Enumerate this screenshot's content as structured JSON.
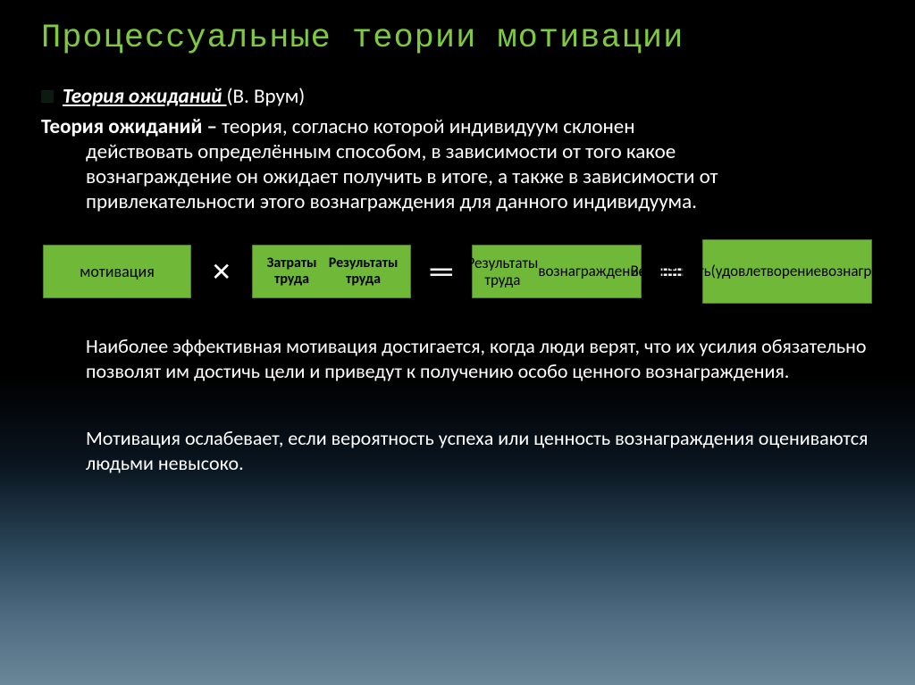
{
  "slide": {
    "title": "Процессуальные теории мотивации",
    "title_color": "#7ec93f",
    "title_fontfamily": "Courier New",
    "title_fontsize": 37
  },
  "subtitle": {
    "main": "Теория ожиданий ",
    "author": "(В. Врум)"
  },
  "definition": {
    "bold_term": "Теория ожиданий – ",
    "rest_first": "теория, согласно которой индивидуум склонен",
    "line2": "действовать определённым способом, в зависимости от того какое",
    "line3": "вознаграждение он ожидает получить в итоге, а также в зависимости от",
    "line4": "привлекательности этого вознаграждения для данного индивидуума."
  },
  "diagram": {
    "background_color": "#70b837",
    "border_color": "#4f7f2e",
    "text_color": "#000000",
    "op_color": "#ffffff",
    "boxes": [
      {
        "lines": [
          "мотивация"
        ],
        "width": 166,
        "height": 60,
        "fontsize": 18,
        "bold": false
      },
      {
        "lines": [
          "Затраты труда",
          "Результаты труда"
        ],
        "width": 178,
        "height": 60,
        "fontsize": 16,
        "bold": true
      },
      {
        "lines": [
          "Результаты труда",
          "вознаграждение"
        ],
        "width": 190,
        "height": 60,
        "fontsize": 17,
        "bold": false
      },
      {
        "lines": [
          "Валентность",
          "(удовлетворение",
          "вознаграждением)"
        ],
        "width": 190,
        "height": 72,
        "fontsize": 17,
        "bold": false
      }
    ],
    "operators": [
      {
        "symbol": "✕",
        "fontsize": 28
      },
      {
        "symbol": "═",
        "fontsize": 34
      },
      {
        "symbol": "═",
        "fontsize": 34
      }
    ]
  },
  "paragraph1": "Наиболее эффективная мотивация достигается, когда люди верят, что их усилия обязательно позволят им достичь цели и приведут к получению особо ценного вознаграждения.",
  "paragraph2": "Мотивация ослабевает, если вероятность успеха или ценность вознаграждения оцениваются людьми невысоко.",
  "background_gradient": [
    "#000000",
    "#6a8699"
  ]
}
